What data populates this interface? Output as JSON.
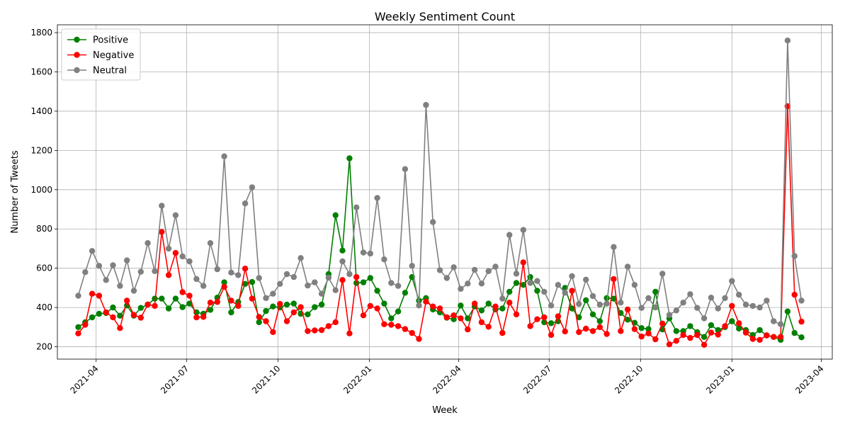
{
  "chart_data": {
    "type": "line",
    "title": "Weekly Sentiment Count",
    "xlabel": "Week",
    "ylabel": "Number of Tweets",
    "x_axis_type": "date",
    "xlim": [
      "2021-02-21",
      "2023-04-12"
    ],
    "ylim": [
      137,
      1840
    ],
    "x_ticks": [
      "2021-04",
      "2021-07",
      "2021-10",
      "2022-01",
      "2022-04",
      "2022-07",
      "2022-10",
      "2023-01",
      "2023-04"
    ],
    "y_ticks": [
      200,
      400,
      600,
      800,
      1000,
      1200,
      1400,
      1600,
      1800
    ],
    "grid": true,
    "legend_position": "top-left",
    "x_start": "2021-03-14",
    "x_step_days": 7,
    "series": [
      {
        "name": "Positive",
        "color": "#008000",
        "values": [
          300,
          325,
          350,
          368,
          372,
          400,
          358,
          410,
          358,
          398,
          415,
          445,
          445,
          395,
          445,
          402,
          420,
          375,
          368,
          388,
          450,
          528,
          375,
          428,
          520,
          530,
          325,
          382,
          405,
          400,
          415,
          420,
          368,
          365,
          402,
          415,
          570,
          870,
          690,
          1160,
          525,
          528,
          550,
          485,
          420,
          345,
          380,
          475,
          555,
          435,
          448,
          390,
          375,
          348,
          340,
          410,
          345,
          405,
          385,
          420,
          390,
          395,
          480,
          525,
          515,
          555,
          485,
          325,
          320,
          330,
          500,
          395,
          350,
          437,
          365,
          330,
          448,
          445,
          372,
          338,
          322,
          295,
          290,
          480,
          288,
          345,
          280,
          280,
          305,
          275,
          250,
          310,
          285,
          300,
          330,
          293,
          285,
          260,
          285,
          258,
          250,
          235,
          380,
          270,
          248
        ]
      },
      {
        "name": "Negative",
        "color": "#ff0000",
        "values": [
          268,
          312,
          470,
          460,
          375,
          350,
          295,
          435,
          362,
          348,
          415,
          408,
          785,
          565,
          678,
          478,
          460,
          350,
          352,
          425,
          428,
          505,
          435,
          408,
          598,
          445,
          352,
          330,
          275,
          418,
          330,
          375,
          402,
          280,
          283,
          285,
          305,
          325,
          540,
          268,
          555,
          360,
          408,
          395,
          315,
          312,
          305,
          290,
          270,
          240,
          430,
          405,
          395,
          350,
          360,
          345,
          288,
          420,
          325,
          302,
          405,
          270,
          425,
          365,
          630,
          305,
          340,
          350,
          260,
          355,
          278,
          485,
          275,
          292,
          280,
          300,
          265,
          545,
          280,
          390,
          290,
          252,
          268,
          238,
          318,
          212,
          230,
          260,
          245,
          260,
          210,
          272,
          262,
          305,
          408,
          320,
          272,
          240,
          235,
          258,
          250,
          250,
          1425,
          465,
          328
        ]
      },
      {
        "name": "Neutral",
        "color": "#808080",
        "values": [
          460,
          580,
          688,
          612,
          540,
          615,
          510,
          640,
          485,
          582,
          728,
          585,
          918,
          700,
          870,
          660,
          635,
          545,
          510,
          728,
          595,
          1170,
          578,
          565,
          930,
          1012,
          550,
          448,
          470,
          520,
          570,
          555,
          652,
          512,
          528,
          470,
          552,
          488,
          635,
          570,
          910,
          680,
          675,
          958,
          645,
          525,
          510,
          1105,
          612,
          410,
          1432,
          835,
          590,
          550,
          605,
          495,
          522,
          592,
          522,
          585,
          608,
          445,
          770,
          572,
          795,
          525,
          535,
          480,
          410,
          515,
          475,
          560,
          418,
          542,
          458,
          415,
          420,
          708,
          425,
          608,
          515,
          398,
          448,
          400,
          572,
          362,
          385,
          425,
          468,
          398,
          345,
          450,
          395,
          448,
          535,
          465,
          415,
          408,
          400,
          435,
          330,
          315,
          1760,
          662,
          435
        ]
      }
    ]
  }
}
